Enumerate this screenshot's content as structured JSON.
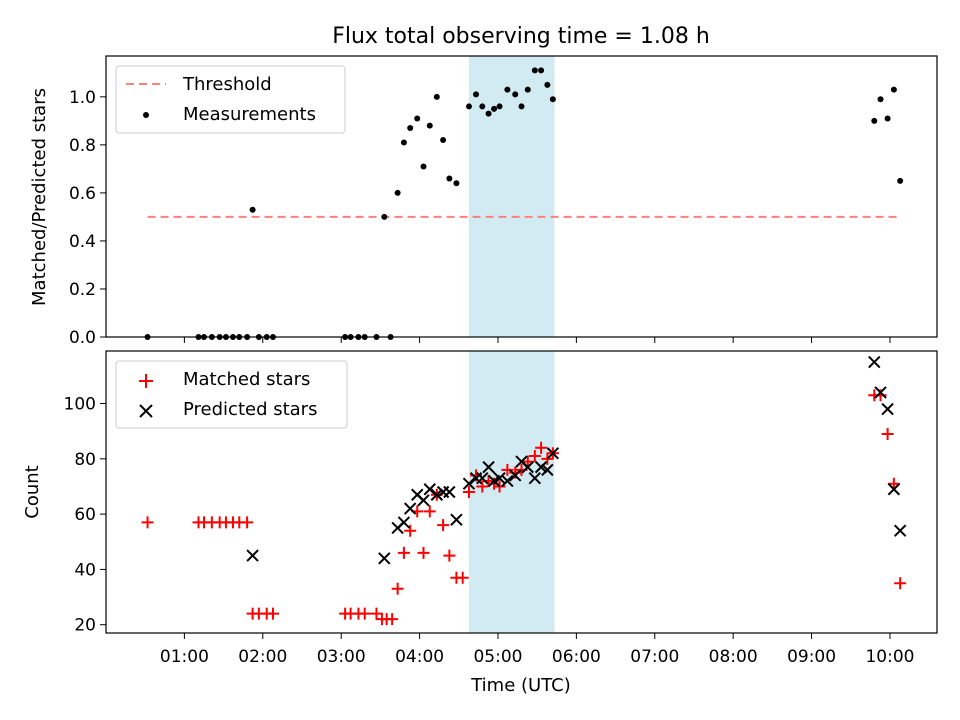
{
  "title": "Flux total observing time = 1.08 h",
  "colors": {
    "threshold": "#ff7f7f",
    "measurement": "#000000",
    "matched": "#ff0000",
    "predicted": "#000000",
    "span": "#add8e6"
  },
  "chart_data": [
    {
      "type": "scatter",
      "panel": "top",
      "ylabel": "Matched/Predicted stars",
      "ylim": [
        0.0,
        1.17
      ],
      "yticks": [
        0.0,
        0.2,
        0.4,
        0.6,
        0.8,
        1.0
      ],
      "ytick_labels": [
        "0.0",
        "0.2",
        "0.4",
        "0.6",
        "0.8",
        "1.0"
      ],
      "xlim_hours": [
        0.0,
        10.6
      ],
      "highlight_span_hours": [
        4.63,
        5.72
      ],
      "legend": {
        "location": "upper left",
        "threshold_label": "Threshold",
        "measurements_label": "Measurements"
      },
      "threshold": {
        "value": 0.5,
        "x_range_hours": [
          0.53,
          10.13
        ]
      },
      "measurements": [
        [
          0.53,
          0.0
        ],
        [
          1.18,
          0.0
        ],
        [
          1.25,
          0.0
        ],
        [
          1.35,
          0.0
        ],
        [
          1.45,
          0.0
        ],
        [
          1.53,
          0.0
        ],
        [
          1.62,
          0.0
        ],
        [
          1.7,
          0.0
        ],
        [
          1.8,
          0.0
        ],
        [
          1.87,
          0.53
        ],
        [
          1.95,
          0.0
        ],
        [
          2.05,
          0.0
        ],
        [
          2.13,
          0.0
        ],
        [
          3.05,
          0.0
        ],
        [
          3.12,
          0.0
        ],
        [
          3.22,
          0.0
        ],
        [
          3.3,
          0.0
        ],
        [
          3.45,
          0.0
        ],
        [
          3.55,
          0.5
        ],
        [
          3.63,
          0.0
        ],
        [
          3.72,
          0.6
        ],
        [
          3.8,
          0.81
        ],
        [
          3.88,
          0.87
        ],
        [
          3.97,
          0.91
        ],
        [
          4.05,
          0.71
        ],
        [
          4.13,
          0.88
        ],
        [
          4.22,
          1.0
        ],
        [
          4.3,
          0.82
        ],
        [
          4.38,
          0.66
        ],
        [
          4.47,
          0.64
        ],
        [
          4.63,
          0.96
        ],
        [
          4.72,
          1.01
        ],
        [
          4.8,
          0.96
        ],
        [
          4.88,
          0.93
        ],
        [
          4.95,
          0.95
        ],
        [
          5.02,
          0.96
        ],
        [
          5.12,
          1.03
        ],
        [
          5.22,
          1.01
        ],
        [
          5.3,
          0.96
        ],
        [
          5.38,
          1.03
        ],
        [
          5.47,
          1.11
        ],
        [
          5.55,
          1.11
        ],
        [
          5.63,
          1.05
        ],
        [
          5.7,
          0.99
        ],
        [
          9.8,
          0.9
        ],
        [
          9.88,
          0.99
        ],
        [
          9.97,
          0.91
        ],
        [
          10.05,
          1.03
        ],
        [
          10.13,
          0.65
        ]
      ]
    },
    {
      "type": "scatter",
      "panel": "bottom",
      "ylabel": "Count",
      "xlabel": "Time (UTC)",
      "ylim": [
        17,
        119
      ],
      "yticks": [
        20,
        40,
        60,
        80,
        100
      ],
      "ytick_labels": [
        "20",
        "40",
        "60",
        "80",
        "100"
      ],
      "xlim_hours": [
        0.0,
        10.6
      ],
      "xticks_hours": [
        1,
        2,
        3,
        4,
        5,
        6,
        7,
        8,
        9,
        10
      ],
      "xtick_labels": [
        "01:00",
        "02:00",
        "03:00",
        "04:00",
        "05:00",
        "06:00",
        "07:00",
        "08:00",
        "09:00",
        "10:00"
      ],
      "highlight_span_hours": [
        4.63,
        5.72
      ],
      "legend": {
        "location": "upper left",
        "matched_label": "Matched stars",
        "predicted_label": "Predicted stars"
      },
      "matched": [
        [
          0.53,
          57
        ],
        [
          1.18,
          57
        ],
        [
          1.25,
          57
        ],
        [
          1.35,
          57
        ],
        [
          1.45,
          57
        ],
        [
          1.53,
          57
        ],
        [
          1.62,
          57
        ],
        [
          1.7,
          57
        ],
        [
          1.8,
          57
        ],
        [
          1.87,
          24
        ],
        [
          1.95,
          24
        ],
        [
          2.05,
          24
        ],
        [
          2.13,
          24
        ],
        [
          3.05,
          24
        ],
        [
          3.12,
          24
        ],
        [
          3.22,
          24
        ],
        [
          3.3,
          24
        ],
        [
          3.45,
          24
        ],
        [
          3.52,
          22
        ],
        [
          3.58,
          22
        ],
        [
          3.65,
          22
        ],
        [
          3.72,
          33
        ],
        [
          3.8,
          46
        ],
        [
          3.88,
          54
        ],
        [
          3.97,
          61
        ],
        [
          4.05,
          46
        ],
        [
          4.13,
          61
        ],
        [
          4.22,
          67
        ],
        [
          4.3,
          56
        ],
        [
          4.38,
          45
        ],
        [
          4.47,
          37
        ],
        [
          4.55,
          37
        ],
        [
          4.63,
          68
        ],
        [
          4.72,
          74
        ],
        [
          4.8,
          70
        ],
        [
          4.88,
          72
        ],
        [
          4.95,
          71
        ],
        [
          5.02,
          70
        ],
        [
          5.12,
          76
        ],
        [
          5.22,
          75
        ],
        [
          5.3,
          76
        ],
        [
          5.38,
          79
        ],
        [
          5.47,
          81
        ],
        [
          5.55,
          84
        ],
        [
          5.63,
          80
        ],
        [
          5.7,
          82
        ],
        [
          9.8,
          103
        ],
        [
          9.88,
          103
        ],
        [
          9.97,
          89
        ],
        [
          10.05,
          71
        ],
        [
          10.13,
          35
        ]
      ],
      "predicted": [
        [
          1.87,
          45
        ],
        [
          3.55,
          44
        ],
        [
          3.72,
          55
        ],
        [
          3.8,
          57
        ],
        [
          3.88,
          62
        ],
        [
          3.97,
          67
        ],
        [
          4.05,
          65
        ],
        [
          4.13,
          69
        ],
        [
          4.22,
          67
        ],
        [
          4.3,
          68
        ],
        [
          4.38,
          68
        ],
        [
          4.47,
          58
        ],
        [
          4.63,
          71
        ],
        [
          4.72,
          73
        ],
        [
          4.8,
          73
        ],
        [
          4.88,
          77
        ],
        [
          4.95,
          72
        ],
        [
          5.02,
          73
        ],
        [
          5.12,
          72
        ],
        [
          5.22,
          74
        ],
        [
          5.3,
          79
        ],
        [
          5.38,
          77
        ],
        [
          5.47,
          73
        ],
        [
          5.55,
          77
        ],
        [
          5.63,
          76
        ],
        [
          5.7,
          82
        ],
        [
          9.8,
          115
        ],
        [
          9.88,
          104
        ],
        [
          9.97,
          98
        ],
        [
          10.05,
          69
        ],
        [
          10.13,
          54
        ]
      ]
    }
  ]
}
